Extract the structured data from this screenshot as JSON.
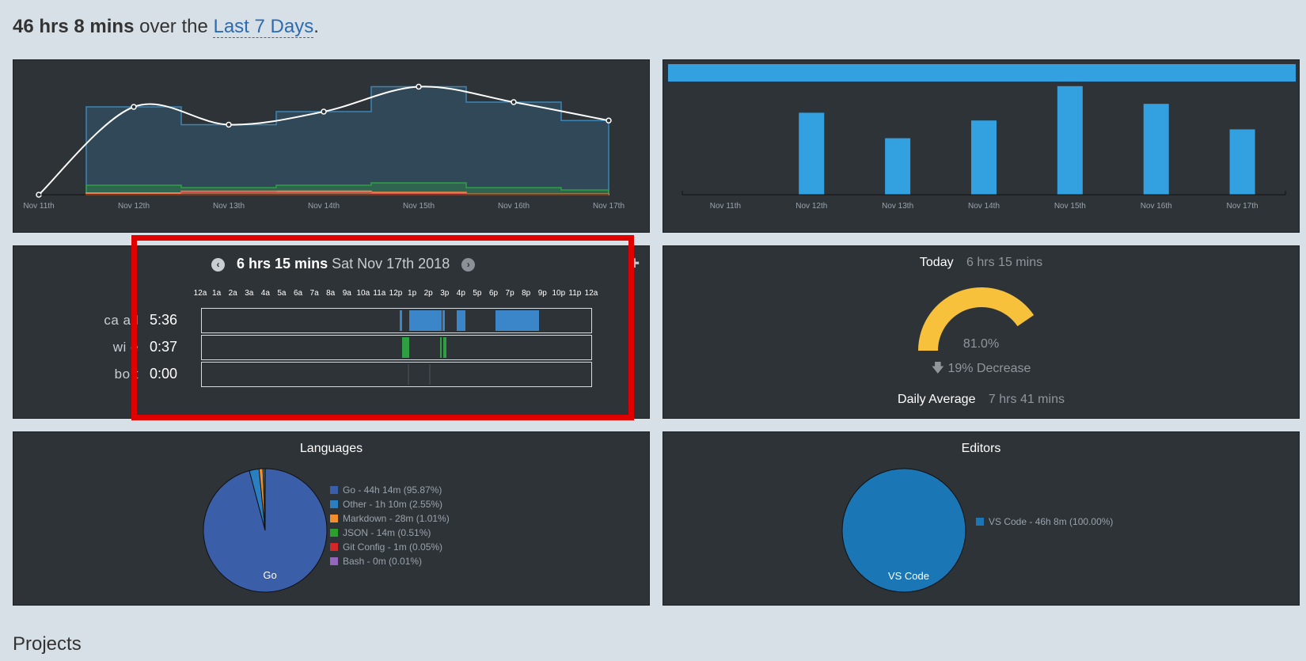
{
  "summary": {
    "total": "46 hrs 8 mins",
    "middle": "over the",
    "range_link": "Last 7 Days",
    "end": "."
  },
  "colors": {
    "panel_bg": "#2e3338",
    "page_bg": "#d8e0e7",
    "activity_bar": "#33a0e0",
    "gauge": "#f7c13b",
    "highlight": "#e00000"
  },
  "chart_data": [
    {
      "type": "area",
      "x": [
        "Nov 11th",
        "Nov 12th",
        "Nov 13th",
        "Nov 14th",
        "Nov 15th",
        "Nov 16th",
        "Nov 17th"
      ],
      "series": [
        {
          "values": [
            0,
            7.4,
            5.9,
            7.0,
            9.1,
            7.8,
            6.25
          ],
          "color": "#3a86b8",
          "style": "step",
          "kind": "total"
        },
        {
          "values": [
            0,
            0.8,
            0.6,
            0.8,
            1.0,
            0.6,
            0.4
          ],
          "color": "#2ea043",
          "style": "step",
          "kind": "json"
        },
        {
          "values": [
            0,
            0.15,
            0.3,
            0.3,
            0.2,
            0.05,
            0.05
          ],
          "color": "#ff8c40",
          "style": "step",
          "kind": "markdown"
        },
        {
          "values": [
            0,
            0.05,
            0.25,
            0.2,
            0.1,
            0.0,
            0.0
          ],
          "color": "#d9534f",
          "style": "step",
          "kind": "git"
        },
        {
          "values": [
            0,
            7.4,
            5.9,
            7.0,
            9.1,
            7.8,
            6.25
          ],
          "color": "#ffffff",
          "style": "smooth",
          "kind": "trend"
        }
      ],
      "ylim": [
        0,
        10
      ]
    },
    {
      "type": "bar",
      "categories": [
        "Nov 11th",
        "Nov 12th",
        "Nov 13th",
        "Nov 14th",
        "Nov 15th",
        "Nov 16th",
        "Nov 17th"
      ],
      "values": [
        0,
        7.4,
        5.1,
        6.7,
        9.8,
        8.2,
        5.9
      ],
      "ylim": [
        0,
        10
      ],
      "color": "#33a0e0",
      "top_band": true
    }
  ],
  "day_view": {
    "duration": "6 hrs 15 mins",
    "date": "Sat Nov 17th 2018",
    "prev_icon": "chevron-left-icon",
    "next_icon": "chevron-right-icon",
    "hours": [
      "12a",
      "1a",
      "2a",
      "3a",
      "4a",
      "5a",
      "6a",
      "7a",
      "8a",
      "9a",
      "10a",
      "11a",
      "12p",
      "1p",
      "2p",
      "3p",
      "4p",
      "5p",
      "6p",
      "7p",
      "8p",
      "9p",
      "10p",
      "11p",
      "12a"
    ],
    "rows": [
      {
        "label": "ca    a  l",
        "time": "5:36",
        "color": "#3a86c8",
        "segments": [
          [
            12.2,
            12.35
          ],
          [
            12.8,
            14.8
          ],
          [
            14.85,
            15.0
          ],
          [
            15.7,
            16.25
          ],
          [
            18.1,
            20.8
          ]
        ]
      },
      {
        "label": "wi      e",
        "time": "0:37",
        "color": "#2ea043",
        "segments": [
          [
            12.35,
            12.8
          ],
          [
            14.7,
            14.8
          ],
          [
            14.9,
            15.05
          ]
        ]
      },
      {
        "label": "bo     t",
        "time": "0:00",
        "color": "#3d4349",
        "segments": [
          [
            12.7,
            12.75
          ],
          [
            14.0,
            14.05
          ]
        ]
      }
    ]
  },
  "today": {
    "label": "Today",
    "value": "6 hrs 15 mins",
    "percent": "81.0%",
    "gauge_fraction": 0.81,
    "change_icon": "arrow-down-icon",
    "change": "19% Decrease",
    "daily_avg_label": "Daily Average",
    "daily_avg_value": "7 hrs 41 mins"
  },
  "languages": {
    "title": "Languages",
    "pie_label": "Go",
    "items": [
      {
        "label": "Go - 44h 14m (95.87%)",
        "percent": 95.87,
        "color": "#3b5ea8"
      },
      {
        "label": "Other - 1h 10m (2.55%)",
        "percent": 2.55,
        "color": "#2a7fc1"
      },
      {
        "label": "Markdown - 28m (1.01%)",
        "percent": 1.01,
        "color": "#f28e2c"
      },
      {
        "label": "JSON - 14m (0.51%)",
        "percent": 0.51,
        "color": "#2ca02c"
      },
      {
        "label": "Git Config - 1m (0.05%)",
        "percent": 0.05,
        "color": "#d62728"
      },
      {
        "label": "Bash - 0m (0.01%)",
        "percent": 0.01,
        "color": "#9467bd"
      }
    ]
  },
  "editors": {
    "title": "Editors",
    "pie_label": "VS Code",
    "items": [
      {
        "label": "VS Code - 46h 8m (100.00%)",
        "percent": 100,
        "color": "#1a76b4"
      }
    ]
  },
  "projects_heading": "Projects"
}
